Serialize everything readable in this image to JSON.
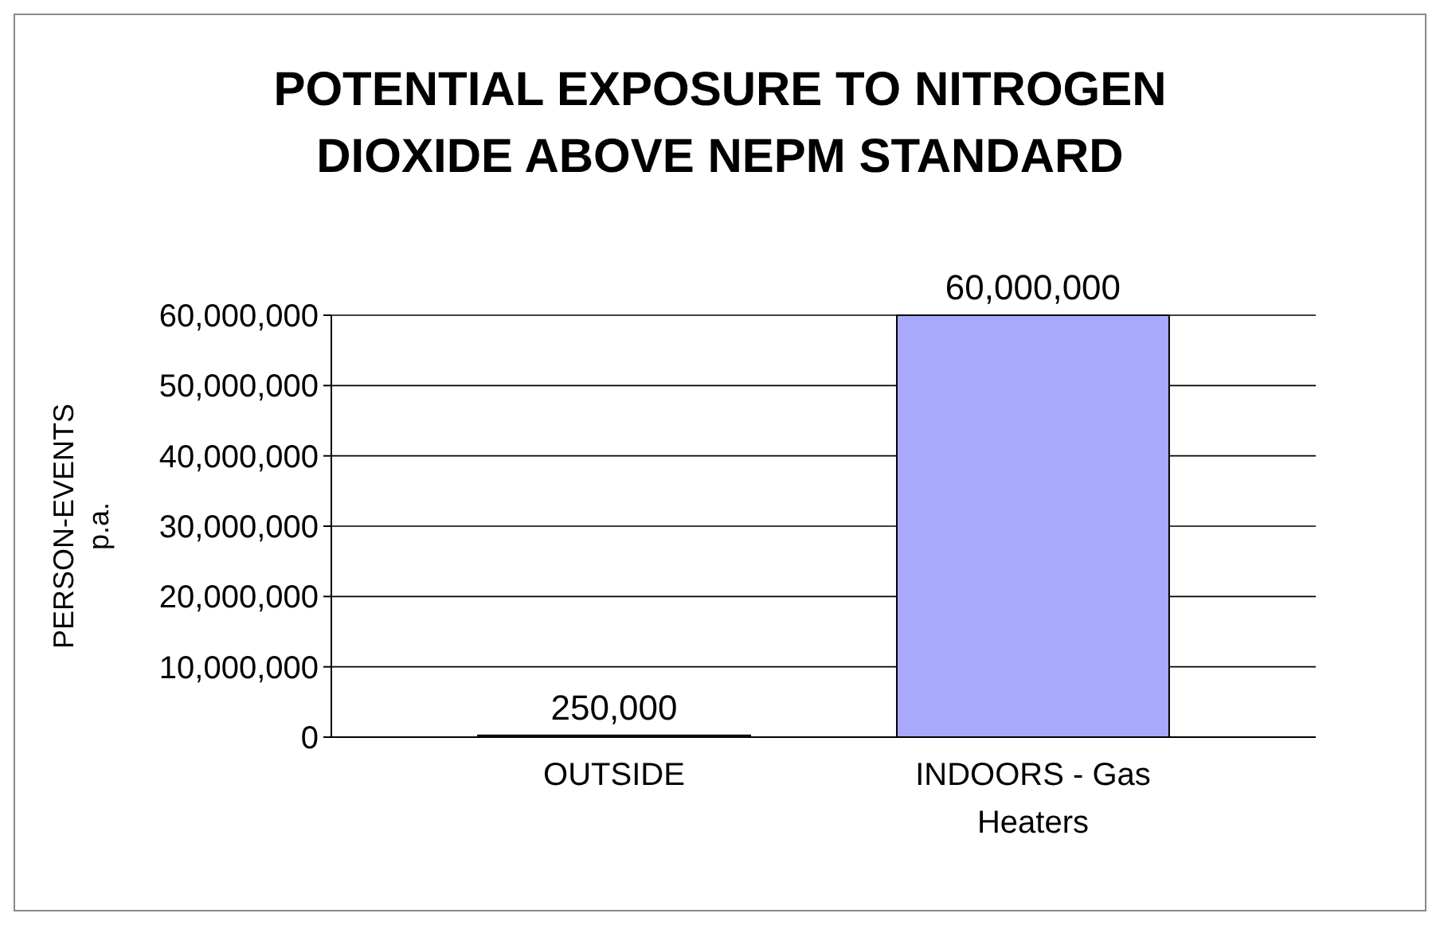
{
  "chart_data": {
    "type": "bar",
    "title": "POTENTIAL EXPOSURE TO NITROGEN DIOXIDE ABOVE NEPM STANDARD",
    "ylabel": "PERSON-EVENTS\np.a.",
    "categories": [
      "OUTSIDE",
      "INDOORS - Gas Heaters"
    ],
    "values": [
      250000,
      60000000
    ],
    "colors": [
      "#8c8cdc",
      "#a8a8fc"
    ],
    "ylim": [
      0,
      60000000
    ],
    "yticks": [
      {
        "value": 0,
        "label": "0"
      },
      {
        "value": 10000000,
        "label": "10,000,000"
      },
      {
        "value": 20000000,
        "label": "20,000,000"
      },
      {
        "value": 30000000,
        "label": "30,000,000"
      },
      {
        "value": 40000000,
        "label": "40,000,000"
      },
      {
        "value": 50000000,
        "label": "50,000,000"
      },
      {
        "value": 60000000,
        "label": "60,000,000"
      }
    ],
    "grid": "y",
    "value_labels": [
      "250,000",
      "60,000,000"
    ]
  }
}
